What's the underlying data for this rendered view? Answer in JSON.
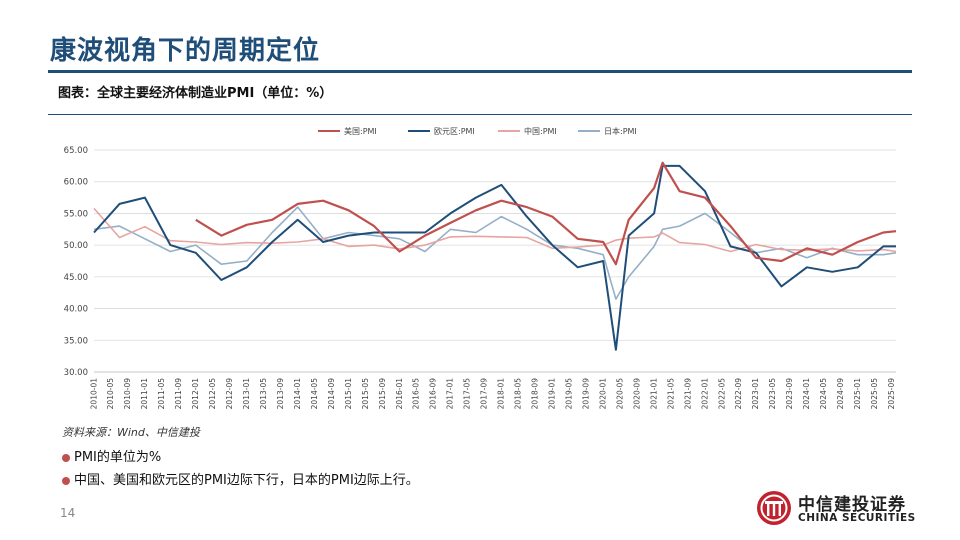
{
  "header": {
    "title": "康波视角下的周期定位",
    "subtitle": "图表：全球主要经济体制造业PMI（单位：%）"
  },
  "footer": {
    "source": "资料来源：Wind、中信建投",
    "bullets": [
      "PMI的单位为%",
      "中国、美国和欧元区的PMI边际下行，日本的PMI边际上行。"
    ],
    "page_number": "14"
  },
  "logo": {
    "cn": "中信建投证券",
    "en": "CHINA SECURITIES"
  },
  "colors": {
    "accent": "#1f4e79",
    "us": "#c0504d",
    "eu": "#1f4e79",
    "cn": "#e6a5a0",
    "jp": "#95afc8"
  },
  "chart_data": {
    "type": "line",
    "title": "",
    "xlabel": "",
    "ylabel": "",
    "ylim": [
      30,
      65
    ],
    "yticks": [
      "30.00",
      "35.00",
      "40.00",
      "45.00",
      "50.00",
      "55.00",
      "60.00",
      "65.00"
    ],
    "xticks": [
      "2010-01",
      "2010-05",
      "2010-09",
      "2011-01",
      "2011-05",
      "2011-09",
      "2012-01",
      "2012-05",
      "2012-09",
      "2013-01",
      "2013-05",
      "2013-09",
      "2014-01",
      "2014-05",
      "2014-09",
      "2015-01",
      "2015-05",
      "2015-09",
      "2016-01",
      "2016-05",
      "2016-09",
      "2017-01",
      "2017-05",
      "2017-09",
      "2018-01",
      "2018-05",
      "2018-09",
      "2019-01",
      "2019-05",
      "2019-09",
      "2020-01",
      "2020-05",
      "2020-09",
      "2021-01",
      "2021-05",
      "2021-09",
      "2022-01",
      "2022-05",
      "2022-09",
      "2023-01",
      "2023-05",
      "2023-09",
      "2024-01",
      "2024-05",
      "2024-09",
      "2025-01",
      "2025-05",
      "2025-09"
    ],
    "grid": true,
    "legend": "top-center",
    "x_points": [
      "2010-01",
      "2010-07",
      "2011-01",
      "2011-07",
      "2012-01",
      "2012-07",
      "2013-01",
      "2013-07",
      "2014-01",
      "2014-07",
      "2015-01",
      "2015-07",
      "2016-01",
      "2016-07",
      "2017-01",
      "2017-07",
      "2018-01",
      "2018-07",
      "2019-01",
      "2019-07",
      "2020-01",
      "2020-04",
      "2020-07",
      "2021-01",
      "2021-03",
      "2021-07",
      "2022-01",
      "2022-07",
      "2023-01",
      "2023-07",
      "2024-01",
      "2024-07",
      "2025-01",
      "2025-07",
      "2025-10"
    ],
    "series": [
      {
        "name": "美国:PMI",
        "color": "#c0504d",
        "width": 2.2,
        "values": [
          null,
          null,
          null,
          null,
          54.0,
          51.5,
          53.2,
          54.0,
          56.5,
          57.0,
          55.5,
          53.0,
          49.0,
          51.5,
          53.5,
          55.5,
          57.0,
          56.0,
          54.5,
          51.0,
          50.5,
          47.0,
          54.0,
          59.0,
          63.0,
          58.5,
          57.5,
          53.0,
          48.0,
          47.5,
          49.5,
          48.5,
          50.5,
          52.0,
          52.2
        ]
      },
      {
        "name": "欧元区:PMI",
        "color": "#1f4e79",
        "width": 2.0,
        "values": [
          52.0,
          56.5,
          57.5,
          50.0,
          48.8,
          44.5,
          46.5,
          50.5,
          54.0,
          50.5,
          51.5,
          52.0,
          52.0,
          52.0,
          55.0,
          57.5,
          59.5,
          54.5,
          50.0,
          46.5,
          47.5,
          33.5,
          51.5,
          55.0,
          62.5,
          62.5,
          58.5,
          49.8,
          48.8,
          43.5,
          46.5,
          45.8,
          46.5,
          49.8,
          49.8
        ]
      },
      {
        "name": "中国:PMI",
        "color": "#e6a5a0",
        "width": 1.6,
        "values": [
          55.8,
          51.2,
          52.9,
          50.7,
          50.5,
          50.1,
          50.4,
          50.3,
          50.5,
          51.0,
          49.8,
          50.0,
          49.4,
          50.0,
          51.3,
          51.4,
          51.3,
          51.2,
          49.5,
          49.7,
          50.0,
          50.8,
          51.1,
          51.3,
          51.9,
          50.4,
          50.1,
          49.0,
          50.1,
          49.3,
          49.2,
          49.4,
          49.1,
          49.3,
          49.0
        ]
      },
      {
        "name": "日本:PMI",
        "color": "#95afc8",
        "width": 1.6,
        "values": [
          52.5,
          53.0,
          51.0,
          49.0,
          50.0,
          47.0,
          47.5,
          52.0,
          56.0,
          51.0,
          52.0,
          51.5,
          51.0,
          49.0,
          52.5,
          52.0,
          54.5,
          52.5,
          50.0,
          49.5,
          48.5,
          41.5,
          45.0,
          49.8,
          52.5,
          53.0,
          55.0,
          52.0,
          48.8,
          49.5,
          48.0,
          49.5,
          48.5,
          48.5,
          48.8
        ]
      }
    ]
  }
}
